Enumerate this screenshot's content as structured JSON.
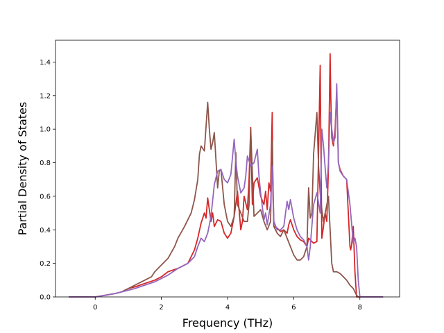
{
  "chart_data": {
    "type": "line",
    "title": "",
    "xlabel": "Frequency (THz)",
    "ylabel": "Partial Density of States",
    "xlim": [
      -1.2,
      9.2
    ],
    "ylim": [
      0.0,
      1.53
    ],
    "xticks": [
      0,
      2,
      4,
      6,
      8
    ],
    "xtick_labels": [
      "0",
      "2",
      "4",
      "6",
      "8"
    ],
    "yticks": [
      0.0,
      0.2,
      0.4,
      0.6,
      0.8,
      1.0,
      1.2,
      1.4
    ],
    "ytick_labels": [
      "0.0",
      "0.2",
      "0.4",
      "0.6",
      "0.8",
      "1.0",
      "1.2",
      "1.4"
    ],
    "grid": false,
    "legend": "none",
    "series": [
      {
        "color": "#d62728",
        "x": [
          -0.8,
          0.0,
          0.3,
          0.6,
          0.8,
          0.9,
          1.0,
          1.2,
          1.5,
          1.8,
          2.0,
          2.2,
          2.5,
          2.8,
          3.0,
          3.1,
          3.2,
          3.3,
          3.35,
          3.4,
          3.5,
          3.55,
          3.6,
          3.7,
          3.8,
          3.9,
          4.0,
          4.1,
          4.2,
          4.3,
          4.4,
          4.45,
          4.5,
          4.6,
          4.65,
          4.7,
          4.75,
          4.8,
          4.9,
          5.0,
          5.1,
          5.15,
          5.2,
          5.25,
          5.3,
          5.35,
          5.37,
          5.4,
          5.5,
          5.6,
          5.7,
          5.8,
          5.85,
          5.9,
          6.0,
          6.1,
          6.2,
          6.3,
          6.4,
          6.45,
          6.5,
          6.6,
          6.7,
          6.8,
          6.82,
          6.85,
          6.9,
          6.95,
          7.0,
          7.05,
          7.1,
          7.12,
          7.15,
          7.2,
          7.25,
          7.3,
          7.35,
          7.4,
          7.5,
          7.6,
          7.7,
          7.72,
          7.75,
          7.8,
          7.85,
          7.9,
          7.95,
          8.0,
          8.2,
          8.7
        ],
        "y": [
          0.0,
          0.0,
          0.01,
          0.02,
          0.03,
          0.04,
          0.05,
          0.06,
          0.08,
          0.1,
          0.12,
          0.15,
          0.17,
          0.2,
          0.28,
          0.35,
          0.44,
          0.5,
          0.47,
          0.59,
          0.45,
          0.5,
          0.42,
          0.46,
          0.45,
          0.38,
          0.35,
          0.38,
          0.48,
          0.63,
          0.4,
          0.45,
          0.6,
          0.52,
          0.7,
          1.01,
          0.55,
          0.68,
          0.71,
          0.6,
          0.55,
          0.63,
          0.52,
          0.68,
          0.63,
          1.1,
          0.62,
          0.42,
          0.41,
          0.39,
          0.4,
          0.38,
          0.43,
          0.46,
          0.4,
          0.36,
          0.34,
          0.33,
          0.3,
          0.35,
          0.34,
          0.32,
          0.33,
          1.38,
          0.9,
          0.35,
          0.42,
          0.5,
          0.45,
          0.77,
          1.45,
          1.2,
          0.95,
          0.9,
          1.0,
          1.22,
          0.8,
          0.76,
          0.72,
          0.7,
          0.3,
          0.28,
          0.31,
          0.42,
          0.15,
          0.0,
          0.0,
          0.0,
          0.0,
          0.0
        ]
      },
      {
        "color": "#8c564b",
        "x": [
          -0.8,
          0.0,
          0.3,
          0.6,
          0.8,
          1.0,
          1.2,
          1.5,
          1.7,
          1.8,
          2.0,
          2.2,
          2.4,
          2.5,
          2.7,
          2.9,
          3.0,
          3.1,
          3.15,
          3.2,
          3.3,
          3.4,
          3.45,
          3.5,
          3.55,
          3.6,
          3.7,
          3.75,
          3.8,
          3.9,
          4.0,
          4.1,
          4.2,
          4.25,
          4.3,
          4.4,
          4.5,
          4.6,
          4.65,
          4.7,
          4.8,
          4.9,
          5.0,
          5.1,
          5.2,
          5.3,
          5.35,
          5.4,
          5.5,
          5.6,
          5.7,
          5.8,
          5.9,
          6.0,
          6.1,
          6.2,
          6.3,
          6.4,
          6.45,
          6.5,
          6.55,
          6.6,
          6.7,
          6.75,
          6.8,
          6.85,
          6.9,
          6.95,
          7.0,
          7.05,
          7.1,
          7.15,
          7.2,
          7.3,
          7.4,
          7.5,
          7.6,
          7.7,
          7.8,
          7.85,
          7.9,
          7.95,
          8.0,
          8.7
        ],
        "y": [
          0.0,
          0.0,
          0.01,
          0.02,
          0.03,
          0.05,
          0.07,
          0.1,
          0.12,
          0.15,
          0.19,
          0.23,
          0.3,
          0.35,
          0.42,
          0.5,
          0.58,
          0.7,
          0.85,
          0.9,
          0.87,
          1.16,
          1.0,
          0.88,
          0.92,
          0.98,
          0.65,
          0.75,
          0.76,
          0.55,
          0.45,
          0.42,
          0.48,
          0.86,
          0.55,
          0.5,
          0.45,
          0.45,
          0.55,
          1.0,
          0.48,
          0.5,
          0.52,
          0.45,
          0.4,
          0.45,
          0.93,
          0.42,
          0.38,
          0.36,
          0.4,
          0.35,
          0.3,
          0.25,
          0.22,
          0.22,
          0.24,
          0.3,
          0.65,
          0.47,
          0.5,
          0.85,
          1.1,
          0.78,
          0.62,
          0.52,
          0.45,
          0.5,
          0.55,
          0.6,
          0.4,
          0.2,
          0.15,
          0.15,
          0.14,
          0.12,
          0.1,
          0.07,
          0.05,
          0.03,
          0.01,
          0.0,
          0.0,
          0.0
        ]
      },
      {
        "color": "#9467bd",
        "x": [
          -0.8,
          0.0,
          0.3,
          0.6,
          0.8,
          1.0,
          1.2,
          1.5,
          1.8,
          2.0,
          2.2,
          2.5,
          2.8,
          3.0,
          3.1,
          3.2,
          3.3,
          3.4,
          3.5,
          3.6,
          3.7,
          3.8,
          3.9,
          4.0,
          4.1,
          4.2,
          4.25,
          4.3,
          4.4,
          4.5,
          4.55,
          4.6,
          4.7,
          4.8,
          4.9,
          4.95,
          5.0,
          5.1,
          5.15,
          5.2,
          5.3,
          5.35,
          5.4,
          5.5,
          5.6,
          5.7,
          5.8,
          5.85,
          5.9,
          6.0,
          6.1,
          6.2,
          6.3,
          6.4,
          6.45,
          6.5,
          6.6,
          6.7,
          6.8,
          6.85,
          6.9,
          6.95,
          7.0,
          7.05,
          7.1,
          7.15,
          7.2,
          7.25,
          7.3,
          7.35,
          7.4,
          7.5,
          7.6,
          7.7,
          7.8,
          7.85,
          7.9,
          7.95,
          8.0,
          8.7
        ],
        "y": [
          0.0,
          0.0,
          0.01,
          0.02,
          0.03,
          0.04,
          0.05,
          0.07,
          0.09,
          0.11,
          0.13,
          0.17,
          0.2,
          0.24,
          0.3,
          0.35,
          0.33,
          0.38,
          0.48,
          0.67,
          0.75,
          0.76,
          0.7,
          0.68,
          0.73,
          0.94,
          0.81,
          0.72,
          0.62,
          0.65,
          0.72,
          0.84,
          0.78,
          0.8,
          0.88,
          0.72,
          0.62,
          0.46,
          0.5,
          0.43,
          0.55,
          0.78,
          0.45,
          0.4,
          0.4,
          0.42,
          0.57,
          0.52,
          0.58,
          0.47,
          0.4,
          0.36,
          0.34,
          0.3,
          0.22,
          0.3,
          0.55,
          0.62,
          0.5,
          1.0,
          0.9,
          0.77,
          0.65,
          0.8,
          1.1,
          1.0,
          0.92,
          0.95,
          1.27,
          0.8,
          0.75,
          0.72,
          0.7,
          0.55,
          0.32,
          0.35,
          0.3,
          0.1,
          0.0,
          0.0
        ]
      }
    ]
  }
}
